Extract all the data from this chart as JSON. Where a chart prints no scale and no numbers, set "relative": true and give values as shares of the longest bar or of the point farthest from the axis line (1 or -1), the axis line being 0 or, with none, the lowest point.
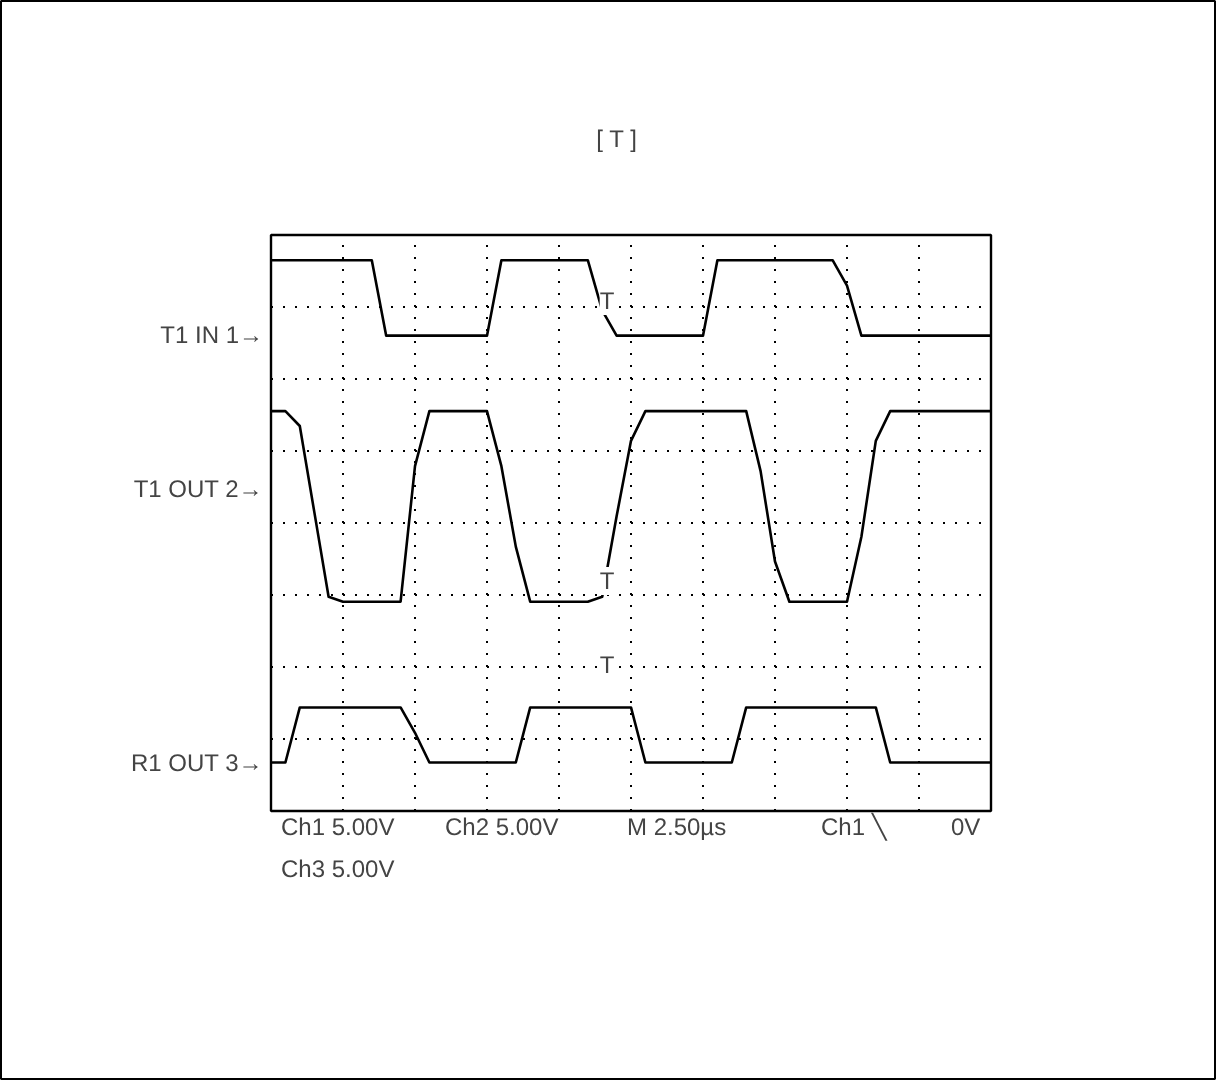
{
  "chart_data": {
    "type": "line",
    "relative": true,
    "grid": true,
    "line_style": "solid",
    "categories": [
      null,
      null,
      null,
      null,
      null,
      null,
      null,
      null,
      null,
      null,
      null,
      null,
      null,
      null,
      null,
      null,
      null,
      null,
      null,
      null,
      null,
      null,
      null,
      null,
      null,
      null,
      null,
      null,
      null,
      null,
      null,
      null,
      null,
      null,
      null,
      null,
      null,
      null,
      null,
      null,
      null,
      null,
      null,
      null,
      null,
      null,
      null,
      null,
      null,
      null,
      null
    ],
    "series": [
      {
        "name": "T1 IN 1→",
        "color": "#000000",
        "values": [
          1.0,
          1.0,
          1.0,
          1.0,
          1.0,
          1.0,
          1.0,
          1.0,
          0.863,
          0.863,
          0.863,
          0.863,
          0.863,
          0.863,
          0.863,
          0.863,
          1.0,
          1.0,
          1.0,
          1.0,
          1.0,
          1.0,
          1.0,
          0.909,
          0.863,
          0.863,
          0.863,
          0.863,
          0.863,
          0.863,
          0.863,
          1.0,
          1.0,
          1.0,
          1.0,
          1.0,
          1.0,
          1.0,
          1.0,
          1.0,
          0.954,
          0.863,
          0.863,
          0.863,
          0.863,
          0.863,
          0.863,
          0.863,
          0.863,
          0.863,
          0.863
        ]
      },
      {
        "name": "T1 OUT 2→",
        "color": "#000000",
        "values": [
          0.726,
          0.726,
          0.699,
          0.544,
          0.389,
          0.38,
          0.38,
          0.38,
          0.38,
          0.38,
          0.626,
          0.726,
          0.726,
          0.726,
          0.726,
          0.726,
          0.626,
          0.48,
          0.38,
          0.38,
          0.38,
          0.38,
          0.38,
          0.389,
          0.535,
          0.672,
          0.726,
          0.726,
          0.726,
          0.726,
          0.726,
          0.726,
          0.726,
          0.726,
          0.617,
          0.453,
          0.38,
          0.38,
          0.38,
          0.38,
          0.38,
          0.498,
          0.672,
          0.726,
          0.726,
          0.726,
          0.726,
          0.726,
          0.726,
          0.726,
          0.726
        ]
      },
      {
        "name": "R1 OUT 3→",
        "color": "#000000",
        "values": [
          0.088,
          0.088,
          0.188,
          0.188,
          0.188,
          0.188,
          0.188,
          0.188,
          0.188,
          0.188,
          0.142,
          0.088,
          0.088,
          0.088,
          0.088,
          0.088,
          0.088,
          0.088,
          0.188,
          0.188,
          0.188,
          0.188,
          0.188,
          0.188,
          0.188,
          0.188,
          0.088,
          0.088,
          0.088,
          0.088,
          0.088,
          0.088,
          0.088,
          0.188,
          0.188,
          0.188,
          0.188,
          0.188,
          0.188,
          0.188,
          0.188,
          0.188,
          0.188,
          0.088,
          0.088,
          0.088,
          0.088,
          0.088,
          0.088,
          0.088,
          0.088
        ]
      }
    ],
    "annotations": [
      "[ T ]",
      "T",
      "T",
      "T",
      "Ch1  5.00V",
      "Ch2  5.00V",
      "M 2.50µs",
      "Ch1 ╲",
      "0V",
      "Ch3  5.00V"
    ]
  }
}
